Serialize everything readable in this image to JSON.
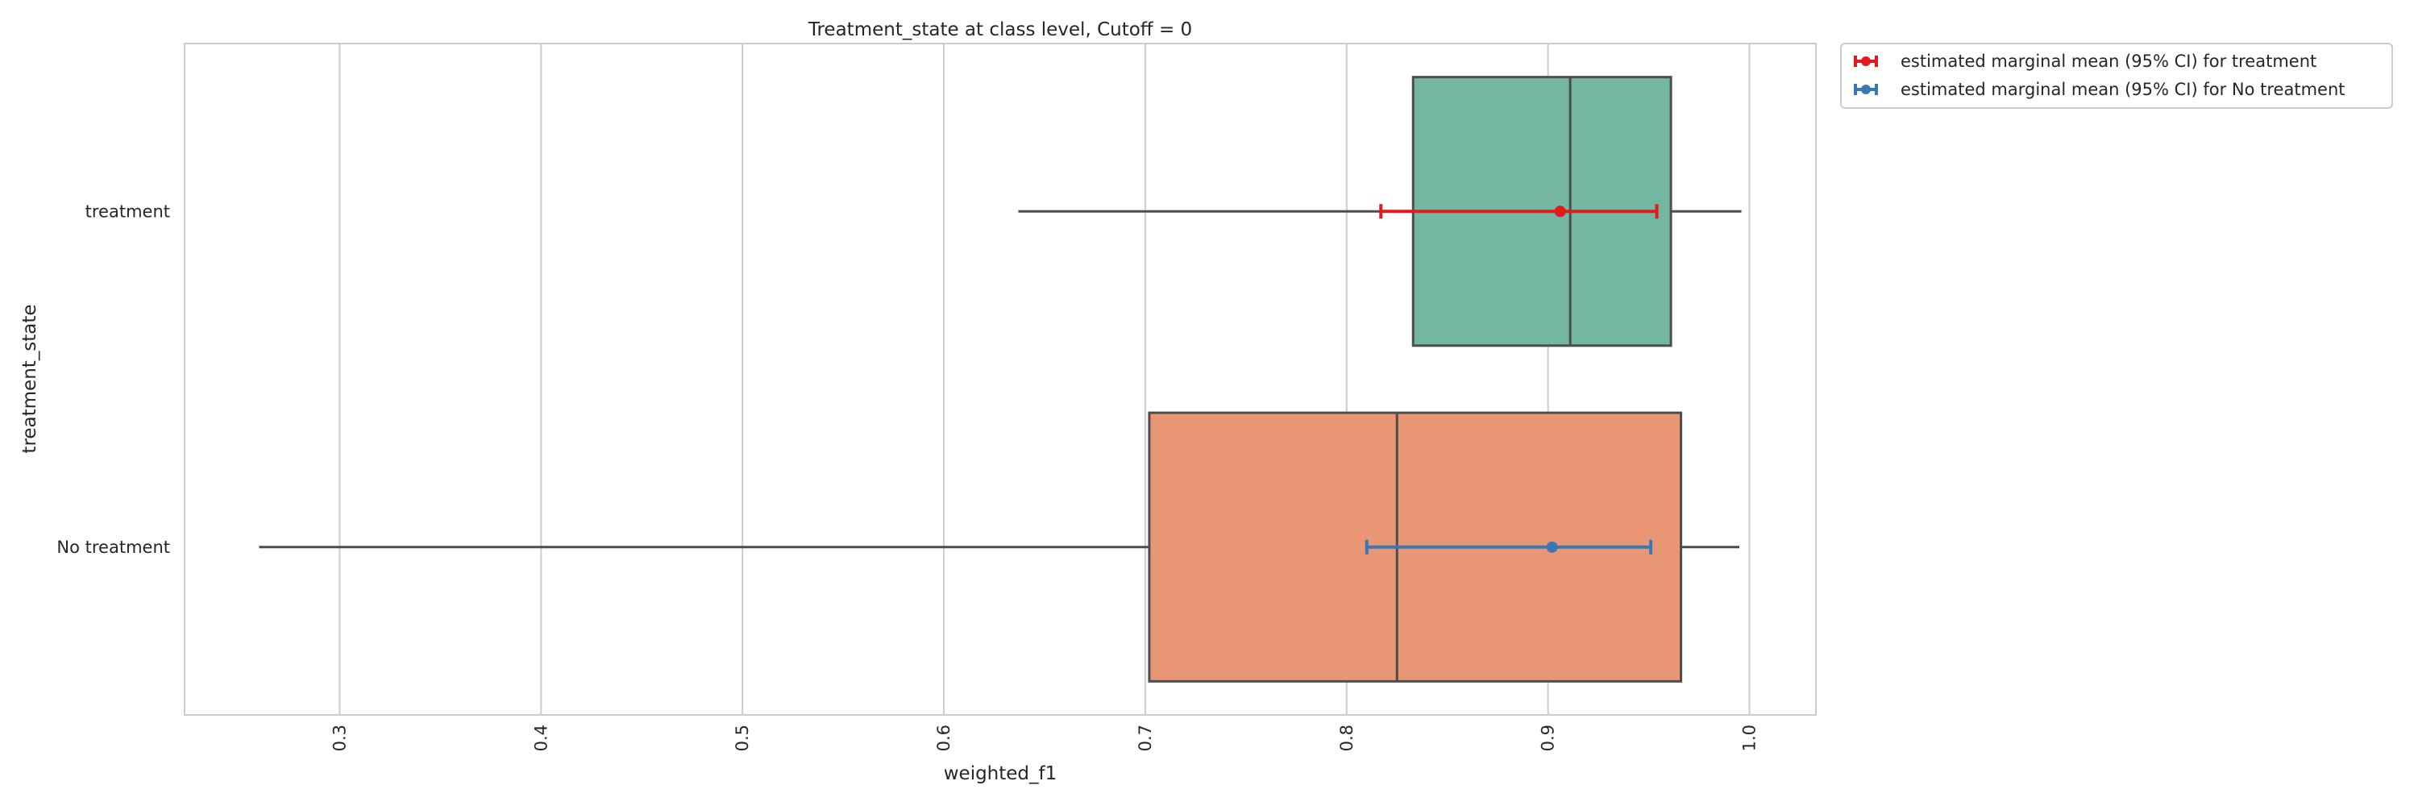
{
  "chart_data": {
    "type": "box",
    "orientation": "horizontal",
    "title": "Treatment_state at class level, Cutoff = 0",
    "xlabel": "weighted_f1",
    "ylabel": "treatment_state",
    "xlim": [
      0.223,
      1.033
    ],
    "xticks": [
      0.3,
      0.4,
      0.5,
      0.6,
      0.7,
      0.8,
      0.9,
      1.0
    ],
    "xtick_labels": [
      "0.3",
      "0.4",
      "0.5",
      "0.6",
      "0.7",
      "0.8",
      "0.9",
      "1.0"
    ],
    "grid": "vertical",
    "legend_position": "outside-top-right",
    "categories": [
      "treatment",
      "No treatment"
    ],
    "boxes": [
      {
        "category": "treatment",
        "whisker_low": 0.637,
        "q1": 0.833,
        "median": 0.911,
        "q3": 0.961,
        "whisker_high": 0.996,
        "color": "#73b6a1"
      },
      {
        "category": "No treatment",
        "whisker_low": 0.26,
        "q1": 0.702,
        "median": 0.825,
        "q3": 0.966,
        "whisker_high": 0.995,
        "color": "#e89674"
      }
    ],
    "marginal_means": [
      {
        "name": "estimated marginal mean (95% CI) for treatment",
        "category": "treatment",
        "mean": 0.906,
        "ci_low": 0.817,
        "ci_high": 0.954,
        "color": "#e31a1c"
      },
      {
        "name": "estimated marginal mean (95% CI) for No treatment",
        "category": "No treatment",
        "mean": 0.902,
        "ci_low": 0.81,
        "ci_high": 0.951,
        "color": "#3a78b5"
      }
    ]
  }
}
